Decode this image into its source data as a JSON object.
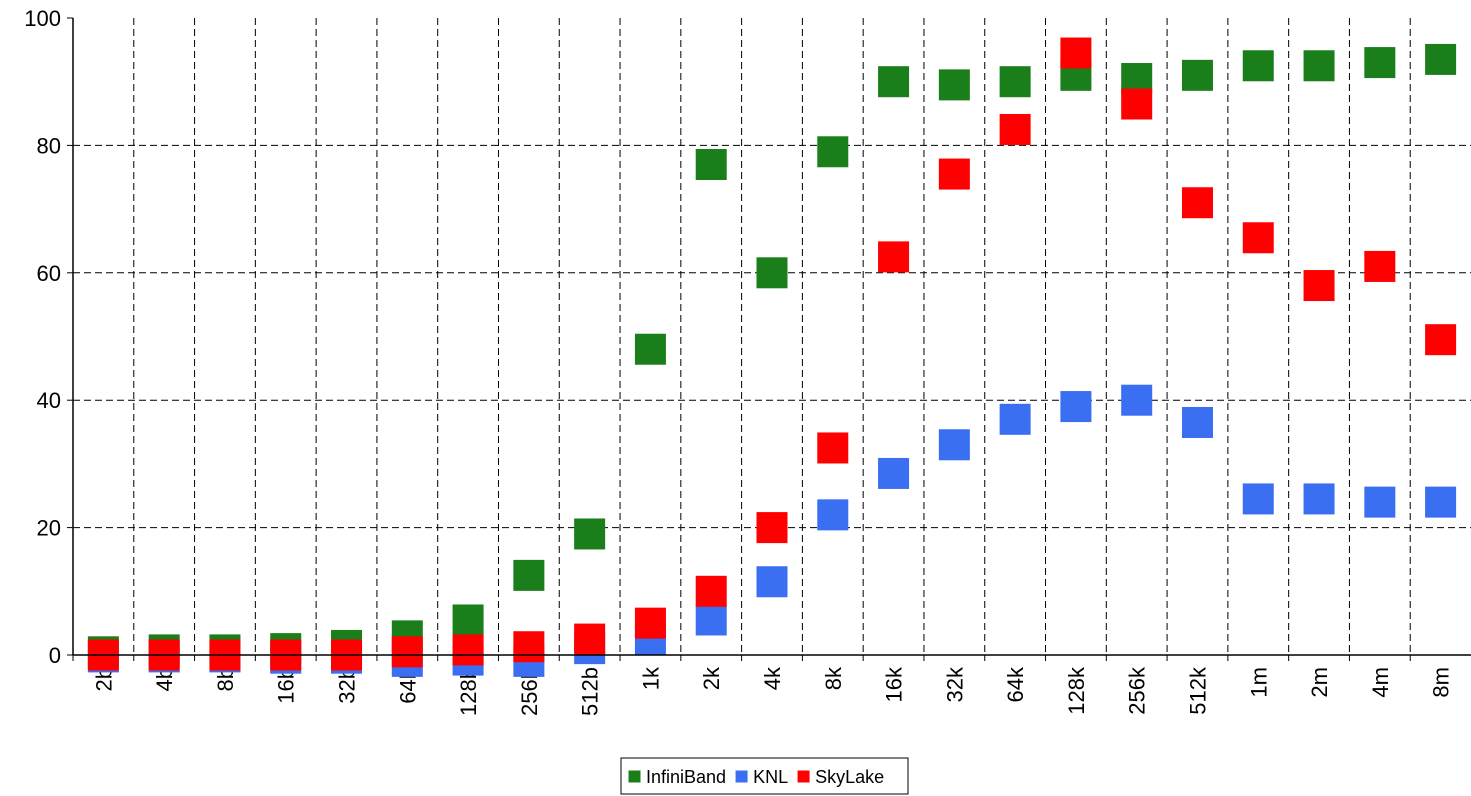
{
  "chart_data": {
    "type": "scatter",
    "title": "",
    "xlabel": "",
    "ylabel": "",
    "ylim": [
      0,
      100
    ],
    "yticks": [
      "0",
      "20",
      "40",
      "60",
      "80",
      "100"
    ],
    "categories": [
      "2b",
      "4b",
      "8b",
      "16b",
      "32b",
      "64b",
      "128b",
      "256b",
      "512b",
      "1k",
      "2k",
      "4k",
      "8k",
      "16k",
      "32k",
      "64k",
      "128k",
      "256k",
      "512k",
      "1m",
      "2m",
      "4m",
      "8m"
    ],
    "grid": true,
    "legend_position": "bottom",
    "series": [
      {
        "name": "InfiniBand",
        "color": "#1a7f1a",
        "values": [
          0.5,
          0.8,
          0.8,
          1.0,
          1.5,
          3.0,
          5.5,
          12.5,
          19,
          48,
          77,
          60,
          79,
          90,
          89.5,
          90,
          91,
          90.5,
          91,
          92.5,
          92.5,
          93,
          93.5
        ]
      },
      {
        "name": "KNL",
        "color": "#3a6ff2",
        "values": [
          -0.3,
          -0.3,
          -0.3,
          -0.5,
          -0.5,
          -1.0,
          -0.8,
          -1.0,
          1.0,
          2.5,
          5.5,
          11.5,
          22,
          28.5,
          33,
          37,
          39,
          40,
          36.5,
          24.5,
          24.5,
          24,
          24
        ]
      },
      {
        "name": "SkyLake",
        "color": "#ff0000",
        "values": [
          0,
          0,
          0,
          0,
          0,
          0.5,
          0.8,
          1.3,
          2.5,
          5.0,
          10,
          20,
          32.5,
          62.5,
          75.5,
          82.5,
          94.5,
          86.5,
          71,
          65.5,
          58,
          61,
          49.5
        ]
      }
    ]
  }
}
